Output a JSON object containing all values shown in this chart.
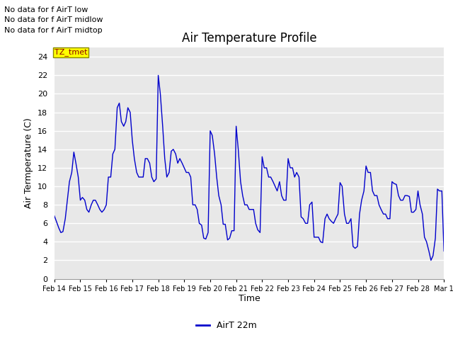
{
  "title": "Air Temperature Profile",
  "xlabel": "Time",
  "ylabel": "Air Termperature (C)",
  "legend_label": "AirT 22m",
  "line_color": "#0000cc",
  "ylim": [
    0,
    25
  ],
  "yticks": [
    0,
    2,
    4,
    6,
    8,
    10,
    12,
    14,
    16,
    18,
    20,
    22,
    24
  ],
  "annotations": [
    "No data for f AirT low",
    "No data for f AirT midlow",
    "No data for f AirT midtop"
  ],
  "tz_label": "TZ_tmet",
  "x_days": [
    "Feb 14",
    "Feb 15",
    "Feb 16",
    "Feb 17",
    "Feb 18",
    "Feb 19",
    "Feb 20",
    "Feb 21",
    "Feb 22",
    "Feb 23",
    "Feb 24",
    "Feb 25",
    "Feb 26",
    "Feb 27",
    "Feb 28",
    "Mar 1"
  ],
  "time_data": [
    0.0,
    0.08,
    0.17,
    0.25,
    0.33,
    0.42,
    0.5,
    0.58,
    0.67,
    0.75,
    0.83,
    0.92,
    1.0,
    1.08,
    1.17,
    1.25,
    1.33,
    1.42,
    1.5,
    1.58,
    1.67,
    1.75,
    1.83,
    1.92,
    2.0,
    2.08,
    2.17,
    2.25,
    2.33,
    2.42,
    2.5,
    2.58,
    2.67,
    2.75,
    2.83,
    2.92,
    3.0,
    3.08,
    3.17,
    3.25,
    3.33,
    3.42,
    3.5,
    3.58,
    3.67,
    3.75,
    3.83,
    3.92,
    4.0,
    4.08,
    4.17,
    4.25,
    4.33,
    4.42,
    4.5,
    4.58,
    4.67,
    4.75,
    4.83,
    4.92,
    5.0,
    5.08,
    5.17,
    5.25,
    5.33,
    5.42,
    5.5,
    5.58,
    5.67,
    5.75,
    5.83,
    5.92,
    6.0,
    6.08,
    6.17,
    6.25,
    6.33,
    6.42,
    6.5,
    6.58,
    6.67,
    6.75,
    6.83,
    6.92,
    7.0,
    7.08,
    7.17,
    7.25,
    7.33,
    7.42,
    7.5,
    7.58,
    7.67,
    7.75,
    7.83,
    7.92,
    8.0,
    8.08,
    8.17,
    8.25,
    8.33,
    8.42,
    8.5,
    8.58,
    8.67,
    8.75,
    8.83,
    8.92,
    9.0,
    9.08,
    9.17,
    9.25,
    9.33,
    9.42,
    9.5,
    9.58,
    9.67,
    9.75,
    9.83,
    9.92,
    10.0,
    10.08,
    10.17,
    10.25,
    10.33,
    10.42,
    10.5,
    10.58,
    10.67,
    10.75,
    10.83,
    10.92,
    11.0,
    11.08,
    11.17,
    11.25,
    11.33,
    11.42,
    11.5,
    11.58,
    11.67,
    11.75,
    11.83,
    11.92,
    12.0,
    12.08,
    12.17,
    12.25,
    12.33,
    12.42,
    12.5,
    12.58,
    12.67,
    12.75,
    12.83,
    12.92,
    13.0,
    13.08,
    13.17,
    13.25,
    13.33,
    13.42,
    13.5,
    13.58,
    13.67,
    13.75,
    13.83,
    13.92,
    14.0,
    14.08,
    14.17,
    14.25,
    14.33,
    14.42,
    14.5,
    14.58,
    14.67,
    14.75,
    14.83,
    14.92,
    15.0
  ],
  "temp_data": [
    6.8,
    6.2,
    5.5,
    5.0,
    5.1,
    6.5,
    8.5,
    10.5,
    11.5,
    13.7,
    12.5,
    11.0,
    8.5,
    8.8,
    8.5,
    7.5,
    7.2,
    8.0,
    8.5,
    8.5,
    8.0,
    7.5,
    7.2,
    7.5,
    8.0,
    11.0,
    11.0,
    13.5,
    14.0,
    18.5,
    19.0,
    17.0,
    16.5,
    17.0,
    18.5,
    18.0,
    15.0,
    13.0,
    11.5,
    11.0,
    11.0,
    11.0,
    13.0,
    13.0,
    12.5,
    11.0,
    10.5,
    10.8,
    22.0,
    20.0,
    16.5,
    13.0,
    11.0,
    11.5,
    13.8,
    14.0,
    13.5,
    12.5,
    13.0,
    12.5,
    12.0,
    11.5,
    11.5,
    11.0,
    8.0,
    8.0,
    7.5,
    6.0,
    5.8,
    4.4,
    4.3,
    5.0,
    16.0,
    15.5,
    13.5,
    11.0,
    9.0,
    8.0,
    5.9,
    5.9,
    4.2,
    4.4,
    5.2,
    5.2,
    16.5,
    14.0,
    10.5,
    9.0,
    8.0,
    8.0,
    7.5,
    7.5,
    7.5,
    6.0,
    5.3,
    5.0,
    13.2,
    12.0,
    12.0,
    11.0,
    11.0,
    10.5,
    10.0,
    9.5,
    10.5,
    9.0,
    8.5,
    8.5,
    13.0,
    12.0,
    12.0,
    11.0,
    11.5,
    11.0,
    6.7,
    6.5,
    6.0,
    6.0,
    8.0,
    8.3,
    4.5,
    4.5,
    4.5,
    4.0,
    3.9,
    6.5,
    7.0,
    6.5,
    6.2,
    6.0,
    6.5,
    7.0,
    10.4,
    10.0,
    7.0,
    6.0,
    6.0,
    6.5,
    3.5,
    3.3,
    3.5,
    7.0,
    8.5,
    9.5,
    12.2,
    11.5,
    11.5,
    9.5,
    9.0,
    9.0,
    8.0,
    7.5,
    7.0,
    7.0,
    6.5,
    6.5,
    10.5,
    10.3,
    10.2,
    9.0,
    8.5,
    8.5,
    9.0,
    9.0,
    8.9,
    7.2,
    7.2,
    7.5,
    9.5,
    8.0,
    7.0,
    4.5,
    4.0,
    3.0,
    2.0,
    2.5,
    4.4,
    9.7,
    9.5,
    9.5,
    3.0
  ]
}
